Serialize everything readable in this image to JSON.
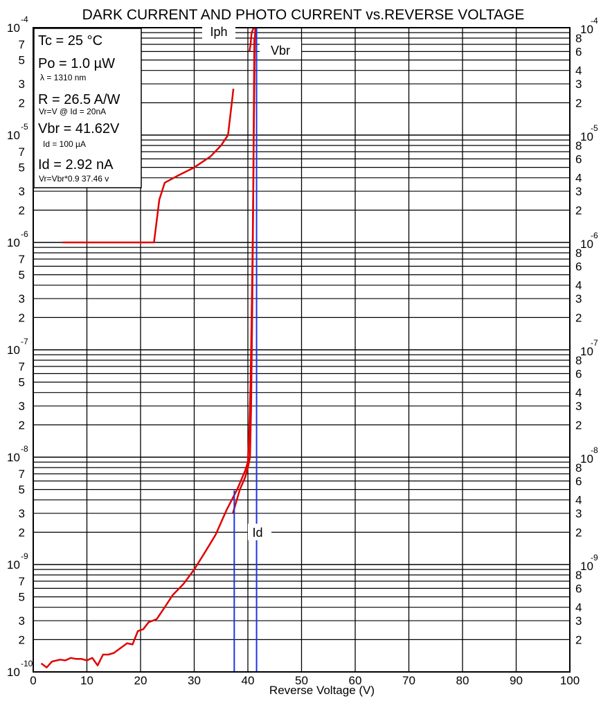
{
  "chart_data": {
    "type": "line",
    "title": "DARK CURRENT AND PHOTO CURRENT vs.REVERSE VOLTAGE",
    "xlabel": "Reverse Voltage (V)",
    "ylabel": "",
    "x_scale": "linear",
    "y_scale": "log",
    "xlim": [
      0,
      100
    ],
    "ylim": [
      1e-10,
      0.0001
    ],
    "grid": true,
    "x_ticks": [
      "0",
      "10",
      "20",
      "30",
      "40",
      "50",
      "60",
      "70",
      "80",
      "90",
      "100"
    ],
    "decade_labels": [
      {
        "base": "10",
        "exp": "-4"
      },
      {
        "base": "10",
        "exp": "-5"
      },
      {
        "base": "10",
        "exp": "-6"
      },
      {
        "base": "10",
        "exp": "-7"
      },
      {
        "base": "10",
        "exp": "-8"
      },
      {
        "base": "10",
        "exp": "-9"
      },
      {
        "base": "10",
        "exp": "-10"
      }
    ],
    "left_minor_labels": [
      "7",
      "5",
      "3",
      "2"
    ],
    "right_minor_labels": [
      "8",
      "6",
      "4",
      "3",
      "2"
    ],
    "annotations": {
      "iph": "Iph",
      "vbr": "Vbr",
      "id": "Id"
    },
    "info_box": {
      "tc": "Tc = 25 °C",
      "po": "Po = 1.0  µW",
      "lambda": "λ = 1310 nm",
      "r": "R = 26.5 A/W",
      "r_note": "Vr=V @ Id = 20nA",
      "vbr": "Vbr = 41.62V",
      "vbr_note": "Id = 100 µA",
      "id": "Id = 2.92  nA",
      "id_note": "Vr=Vbr*0.9  37.46  v"
    },
    "vertical_markers": [
      {
        "name": "Vr",
        "x": 37.46
      },
      {
        "name": "Vbr",
        "x": 41.62
      }
    ],
    "series": [
      {
        "name": "Iph",
        "color": "#e00000",
        "points": [
          [
            5.5,
            1e-06
          ],
          [
            10,
            1e-06
          ],
          [
            15,
            1e-06
          ],
          [
            20,
            1e-06
          ],
          [
            22.5,
            1e-06
          ],
          [
            23.5,
            2.5e-06
          ],
          [
            24.5,
            3.6e-06
          ],
          [
            27,
            4.2e-06
          ],
          [
            30,
            5e-06
          ],
          [
            33,
            6.3e-06
          ],
          [
            35,
            8e-06
          ],
          [
            36.3,
            1e-05
          ],
          [
            37,
            2e-05
          ],
          [
            37.3,
            2.7e-05
          ]
        ]
      },
      {
        "name": "Id",
        "color": "#e00000",
        "points": [
          [
            1.5,
            1.2e-10
          ],
          [
            2.5,
            1.1e-10
          ],
          [
            3.5,
            1.25e-10
          ],
          [
            5,
            1.3e-10
          ],
          [
            6,
            1.28e-10
          ],
          [
            7,
            1.35e-10
          ],
          [
            8,
            1.32e-10
          ],
          [
            9,
            1.32e-10
          ],
          [
            10,
            1.28e-10
          ],
          [
            11,
            1.35e-10
          ],
          [
            12,
            1.15e-10
          ],
          [
            13,
            1.45e-10
          ],
          [
            14,
            1.45e-10
          ],
          [
            15,
            1.5e-10
          ],
          [
            16.5,
            1.7e-10
          ],
          [
            17.5,
            1.85e-10
          ],
          [
            18.5,
            1.8e-10
          ],
          [
            19.5,
            2.4e-10
          ],
          [
            20.5,
            2.5e-10
          ],
          [
            21.5,
            2.9e-10
          ],
          [
            23,
            3.1e-10
          ],
          [
            24.5,
            4e-10
          ],
          [
            26,
            5.2e-10
          ],
          [
            28,
            6.6e-10
          ],
          [
            30,
            9e-10
          ],
          [
            32,
            1.3e-09
          ],
          [
            34,
            1.9e-09
          ],
          [
            36,
            3.2e-09
          ],
          [
            38,
            5e-09
          ],
          [
            39.5,
            7.5e-09
          ],
          [
            40,
            9e-09
          ],
          [
            40.3,
            2e-08
          ],
          [
            40.5,
            5e-08
          ],
          [
            40.7,
            2e-07
          ],
          [
            40.9,
            1e-06
          ],
          [
            41.1,
            1e-05
          ],
          [
            41.3,
            8e-05
          ],
          [
            41.4,
            0.0001
          ]
        ]
      },
      {
        "name": "",
        "color": "#e00000",
        "points": [
          [
            37.2,
            3e-09
          ],
          [
            38.5,
            5e-09
          ],
          [
            39.5,
            6.5e-09
          ],
          [
            40,
            8e-09
          ],
          [
            40.4,
            1e-08
          ],
          [
            40.6,
            3e-08
          ],
          [
            40.8,
            2e-07
          ],
          [
            41,
            3e-06
          ],
          [
            41.2,
            8e-05
          ]
        ]
      },
      {
        "name": "",
        "color": "#e00000",
        "points": [
          [
            40.3,
            6e-05
          ],
          [
            40.5,
            7e-05
          ],
          [
            40.7,
            9e-05
          ],
          [
            41.1,
            0.0001
          ]
        ]
      }
    ]
  }
}
